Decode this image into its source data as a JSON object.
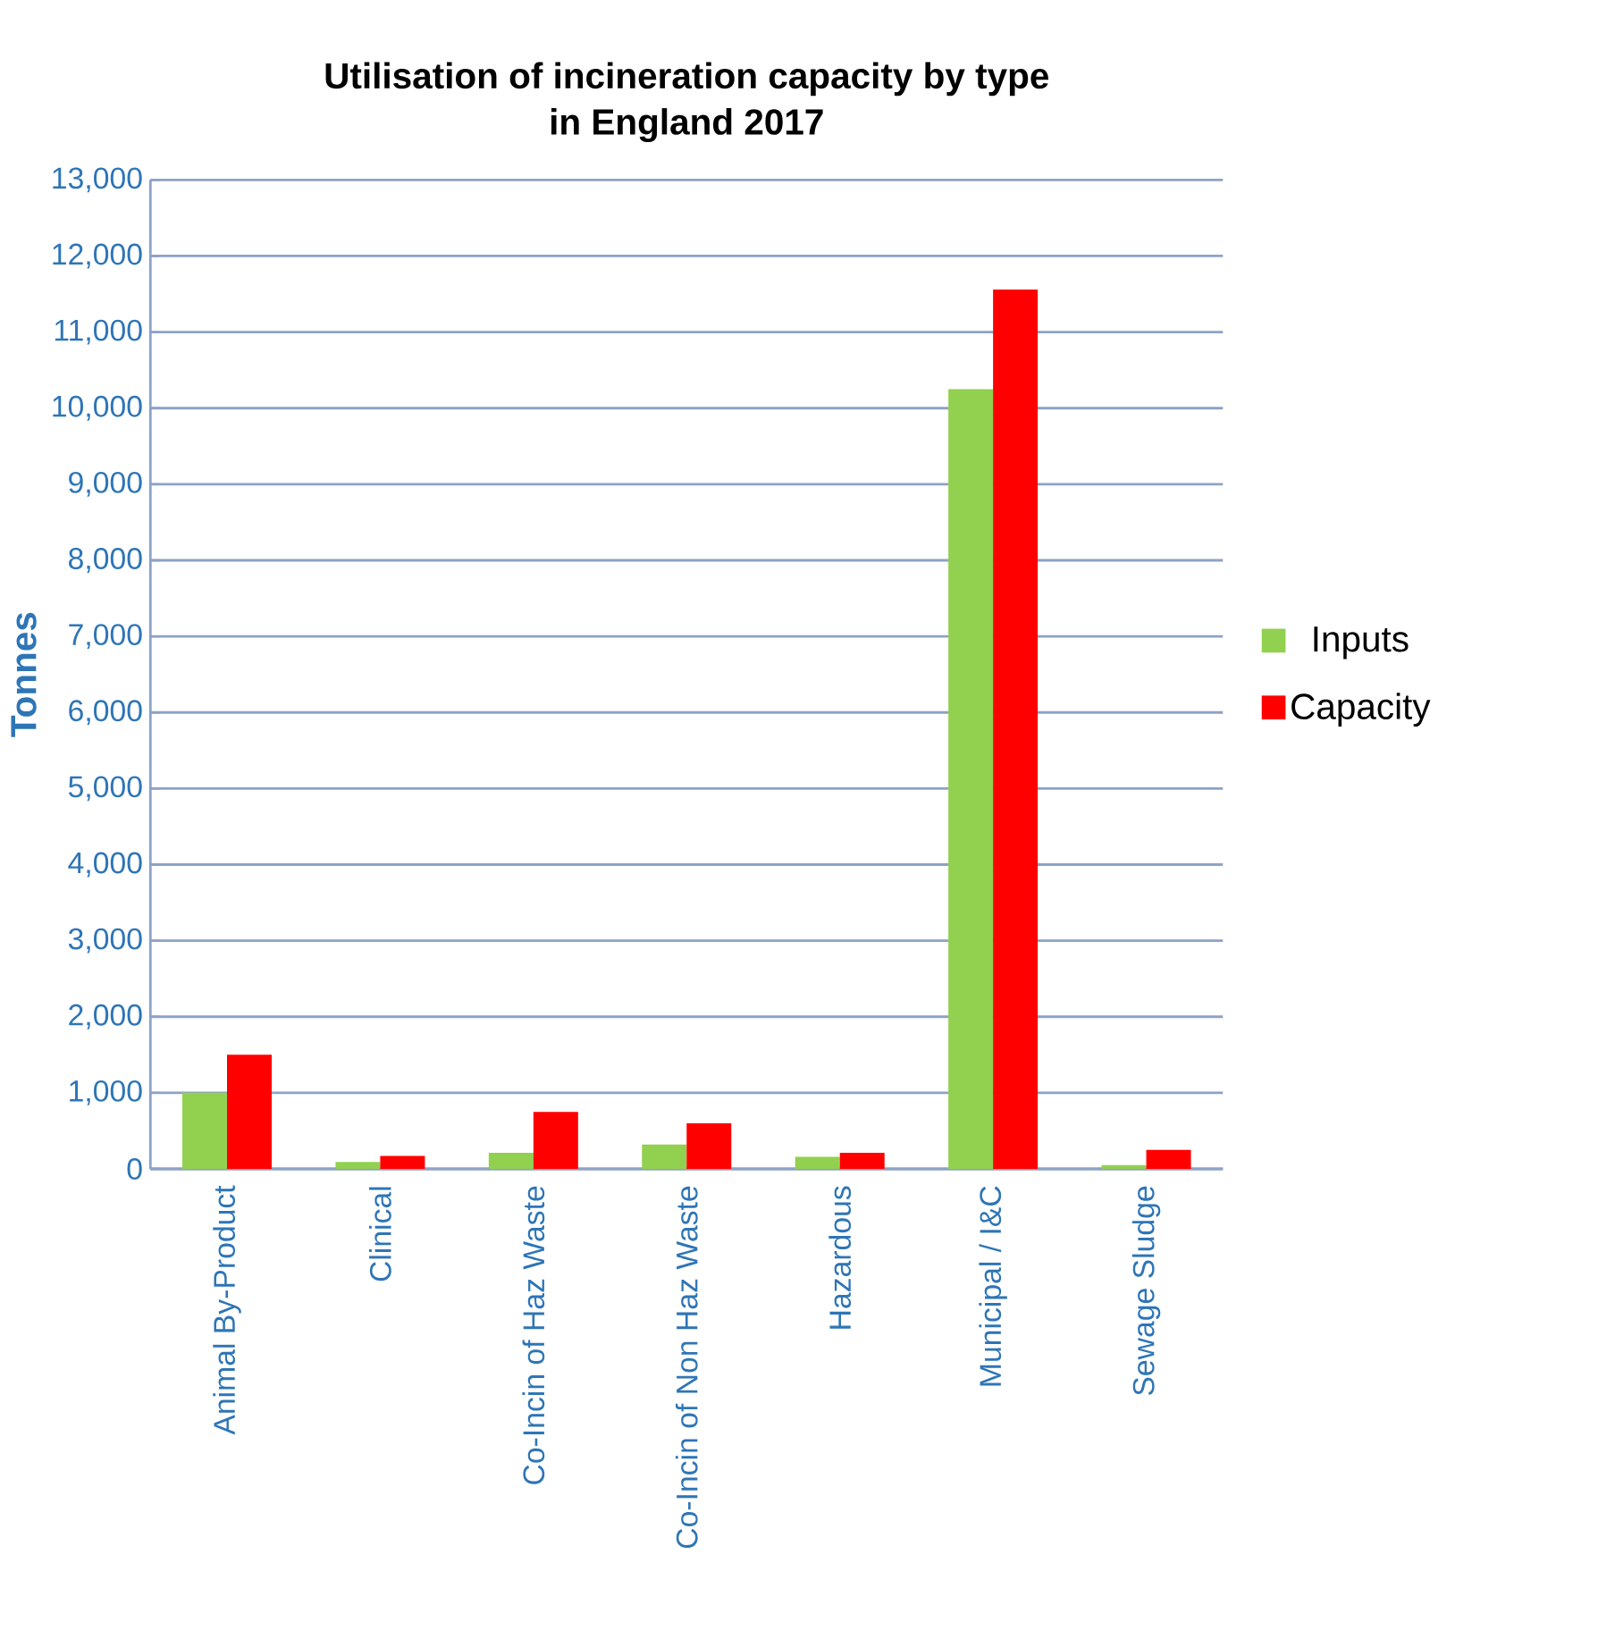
{
  "chart_data": {
    "type": "bar",
    "title": "Utilisation of incineration capacity by type\nin England 2017",
    "ylabel": "Tonnes",
    "categories": [
      "Animal By-Product",
      "Clinical",
      "Co-Incin of Haz Waste",
      "Co-Incin of Non Haz Waste",
      "Hazardous",
      "Municipal / I&C",
      "Sewage Sludge"
    ],
    "series": [
      {
        "name": "Inputs",
        "color": "#92d050",
        "values": [
          1000,
          90,
          210,
          320,
          160,
          10250,
          50
        ]
      },
      {
        "name": "Capacity",
        "color": "#ff0000",
        "values": [
          1500,
          170,
          750,
          600,
          210,
          11560,
          250
        ]
      }
    ],
    "ylim": [
      0,
      13000
    ],
    "yticks": [
      0,
      {
        "value": 1000,
        "label": "1,000"
      },
      {
        "value": 2000,
        "label": "2,000"
      },
      {
        "value": 3000,
        "label": "3,000"
      },
      {
        "value": 4000,
        "label": "4,000"
      },
      {
        "value": 5000,
        "label": "5,000"
      },
      {
        "value": 6000,
        "label": "6,000"
      },
      {
        "value": 7000,
        "label": "7,000"
      },
      {
        "value": 8000,
        "label": "8,000"
      },
      {
        "value": 9000,
        "label": "9,000"
      },
      {
        "value": 10000,
        "label": "10,000"
      },
      {
        "value": 11000,
        "label": "11,000"
      },
      {
        "value": 12000,
        "label": "12,000"
      },
      {
        "value": 13000,
        "label": "13,000"
      }
    ],
    "grid": "y",
    "legend": "right"
  }
}
